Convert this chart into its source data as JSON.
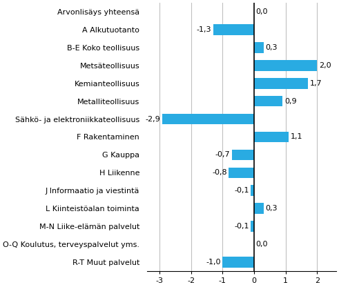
{
  "categories": [
    "Arvonlisäys yhteensä",
    "A Alkutuotanto",
    "B-E Koko teollisuus",
    "Metsäteollisuus",
    "Kemianteollisuus",
    "Metalliteollisuus",
    "Sähkö- ja elektroniikkateollisuus",
    "F Rakentaminen",
    "G Kauppa",
    "H Liikenne",
    "J Informaatio ja viestintä",
    "L Kiinteistöalan toiminta",
    "M-N Liike-elämän palvelut",
    "O-Q Koulutus, terveyspalvelut yms.",
    "R-T Muut palvelut"
  ],
  "values": [
    0.0,
    -1.3,
    0.3,
    2.0,
    1.7,
    0.9,
    -2.9,
    1.1,
    -0.7,
    -0.8,
    -0.1,
    0.3,
    -0.1,
    0.0,
    -1.0
  ],
  "bar_color": "#29abe2",
  "xlim": [
    -3.4,
    2.6
  ],
  "xticks": [
    -3,
    -2,
    -1,
    0,
    1,
    2
  ],
  "figsize": [
    4.91,
    4.16
  ],
  "dpi": 100,
  "label_fontsize": 8,
  "tick_fontsize": 8
}
